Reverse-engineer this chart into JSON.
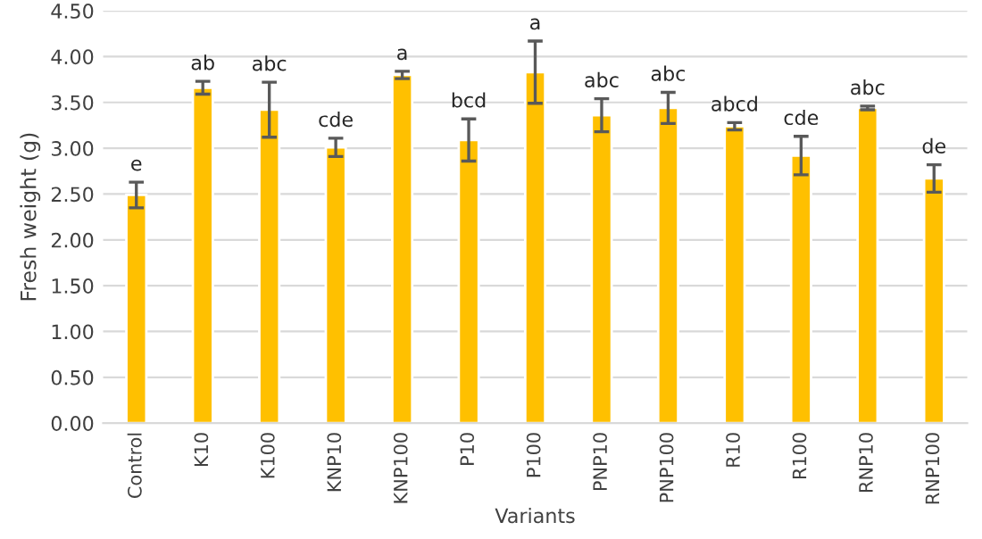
{
  "chart_data": {
    "type": "bar",
    "xlabel": "Variants",
    "ylabel": "Fresh weight (g)",
    "categories": [
      "Control",
      "K10",
      "K100",
      "KNP10",
      "KNP100",
      "P10",
      "P100",
      "PNP10",
      "PNP100",
      "R10",
      "R100",
      "RNP10",
      "RNP100"
    ],
    "values": [
      2.49,
      3.66,
      3.42,
      3.01,
      3.8,
      3.09,
      3.83,
      3.36,
      3.44,
      3.24,
      2.92,
      3.44,
      2.67
    ],
    "errors": [
      0.14,
      0.07,
      0.3,
      0.1,
      0.04,
      0.23,
      0.34,
      0.18,
      0.17,
      0.04,
      0.21,
      0.02,
      0.15
    ],
    "color": "#ffc000",
    "ylim": [
      0,
      4.5
    ],
    "yticks": [
      {
        "value": 0,
        "label": "0.00"
      },
      {
        "value": 0.5,
        "label": "0.50"
      },
      {
        "value": 1,
        "label": "1.00"
      },
      {
        "value": 1.5,
        "label": "1.50"
      },
      {
        "value": 2,
        "label": "2.00"
      },
      {
        "value": 2.5,
        "label": "2.50"
      },
      {
        "value": 3,
        "label": "3.00"
      },
      {
        "value": 3.5,
        "label": "3.50"
      },
      {
        "value": 4,
        "label": "4.00"
      },
      {
        "value": 4.5,
        "label": "4.50"
      }
    ],
    "grid": "y",
    "annotations": [
      {
        "text": "e",
        "x": "Control",
        "y": 2.63
      },
      {
        "text": "ab",
        "x": "K10",
        "y": 3.73
      },
      {
        "text": "abc",
        "x": "K100",
        "y": 3.72
      },
      {
        "text": "cde",
        "x": "KNP10",
        "y": 3.11
      },
      {
        "text": "a",
        "x": "KNP100",
        "y": 3.84
      },
      {
        "text": "bcd",
        "x": "P10",
        "y": 3.32
      },
      {
        "text": "a",
        "x": "P100",
        "y": 4.17
      },
      {
        "text": "abc",
        "x": "PNP10",
        "y": 3.54
      },
      {
        "text": "abc",
        "x": "PNP100",
        "y": 3.61
      },
      {
        "text": "abcd",
        "x": "R10",
        "y": 3.28
      },
      {
        "text": "cde",
        "x": "R100",
        "y": 3.13
      },
      {
        "text": "abc",
        "x": "RNP10",
        "y": 3.46
      },
      {
        "text": "de",
        "x": "RNP100",
        "y": 2.82
      }
    ]
  }
}
